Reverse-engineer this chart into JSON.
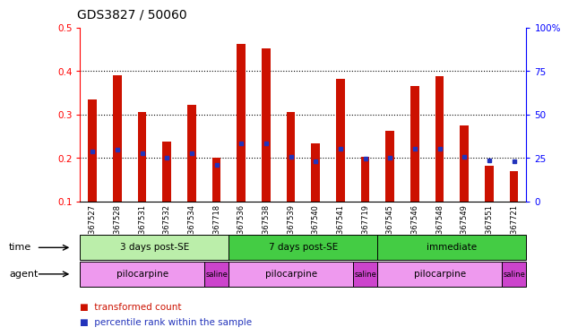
{
  "title": "GDS3827 / 50060",
  "samples": [
    "GSM367527",
    "GSM367528",
    "GSM367531",
    "GSM367532",
    "GSM367534",
    "GSM367718",
    "GSM367536",
    "GSM367538",
    "GSM367539",
    "GSM367540",
    "GSM367541",
    "GSM367719",
    "GSM367545",
    "GSM367546",
    "GSM367548",
    "GSM367549",
    "GSM367551",
    "GSM367721"
  ],
  "red_values": [
    0.335,
    0.39,
    0.306,
    0.237,
    0.323,
    0.2,
    0.462,
    0.453,
    0.305,
    0.233,
    0.383,
    0.202,
    0.263,
    0.366,
    0.388,
    0.274,
    0.183,
    0.17
  ],
  "blue_values": [
    0.216,
    0.22,
    0.212,
    0.201,
    0.212,
    0.185,
    0.233,
    0.233,
    0.203,
    0.193,
    0.222,
    0.199,
    0.201,
    0.222,
    0.222,
    0.203,
    0.195,
    0.193
  ],
  "ylim_left": [
    0.1,
    0.5
  ],
  "ylim_right": [
    0,
    100
  ],
  "yticks_left": [
    0.1,
    0.2,
    0.3,
    0.4,
    0.5
  ],
  "yticks_right": [
    0,
    25,
    50,
    75,
    100
  ],
  "bar_color": "#cc1100",
  "blue_color": "#2233bb",
  "time_groups": [
    {
      "label": "3 days post-SE",
      "start": 0,
      "end": 5,
      "color": "#bbeeaa"
    },
    {
      "label": "7 days post-SE",
      "start": 6,
      "end": 11,
      "color": "#44cc44"
    },
    {
      "label": "immediate",
      "start": 12,
      "end": 17,
      "color": "#44cc44"
    }
  ],
  "agent_groups": [
    {
      "label": "pilocarpine",
      "start": 0,
      "end": 4,
      "color": "#ee99ee"
    },
    {
      "label": "saline",
      "start": 5,
      "end": 5,
      "color": "#cc44cc"
    },
    {
      "label": "pilocarpine",
      "start": 6,
      "end": 10,
      "color": "#ee99ee"
    },
    {
      "label": "saline",
      "start": 11,
      "end": 11,
      "color": "#cc44cc"
    },
    {
      "label": "pilocarpine",
      "start": 12,
      "end": 16,
      "color": "#ee99ee"
    },
    {
      "label": "saline",
      "start": 17,
      "end": 17,
      "color": "#cc44cc"
    }
  ],
  "bg_color": "#ffffff"
}
